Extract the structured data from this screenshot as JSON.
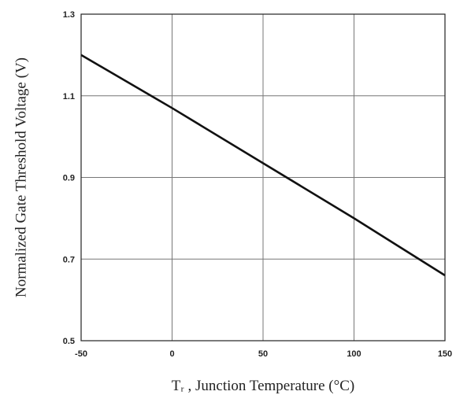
{
  "chart_data": {
    "type": "line",
    "title": "",
    "xlabel": "Tᵣ , Junction Temperature (°C)",
    "ylabel": "Normalized Gate Threshold Voltage (V)",
    "xlim": [
      -50,
      150
    ],
    "ylim": [
      0.5,
      1.3
    ],
    "xticks": [
      -50,
      0,
      50,
      100,
      150
    ],
    "yticks": [
      0.5,
      0.7,
      0.9,
      1.1,
      1.3
    ],
    "xtick_labels": [
      "-50",
      "0",
      "50",
      "100",
      "150"
    ],
    "ytick_labels": [
      "0.5",
      "0.7",
      "0.9",
      "1.1",
      "1.3"
    ],
    "grid": true,
    "series": [
      {
        "x": [
          -50,
          0,
          50,
          100,
          150
        ],
        "values": [
          1.2,
          1.07,
          0.935,
          0.8,
          0.66
        ],
        "color": "#111111"
      }
    ]
  }
}
